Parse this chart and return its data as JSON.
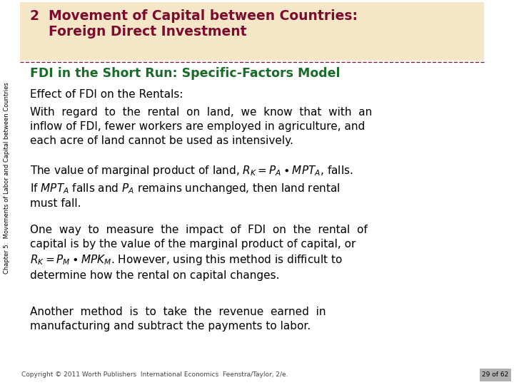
{
  "bg_color": "#ffffff",
  "title_bg_color": "#f5e6c8",
  "title_line1": "2  Movement of Capital between Countries:",
  "title_line2": "    Foreign Direct Investment",
  "title_color": "#7b0c2e",
  "subtitle_text": "FDI in the Short Run: Specific-Factors Model",
  "subtitle_color": "#1a6b2a",
  "body_color": "#000000",
  "sidebar_text": "Chapter 5:  Movements of Labor and Capital between Countries",
  "sidebar_color": "#000000",
  "copyright_text": "Copyright © 2011 Worth Publishers  International Economics  Feenstra/Taylor, 2/e.",
  "page_text": "29 of 62",
  "page_bg": "#b0b0b0",
  "divider_color": "#7b0c2e",
  "title_fontsize": 13.5,
  "subtitle_fontsize": 12.5,
  "body_fontsize": 11.0,
  "sidebar_fontsize": 6.0,
  "footer_fontsize": 6.5
}
